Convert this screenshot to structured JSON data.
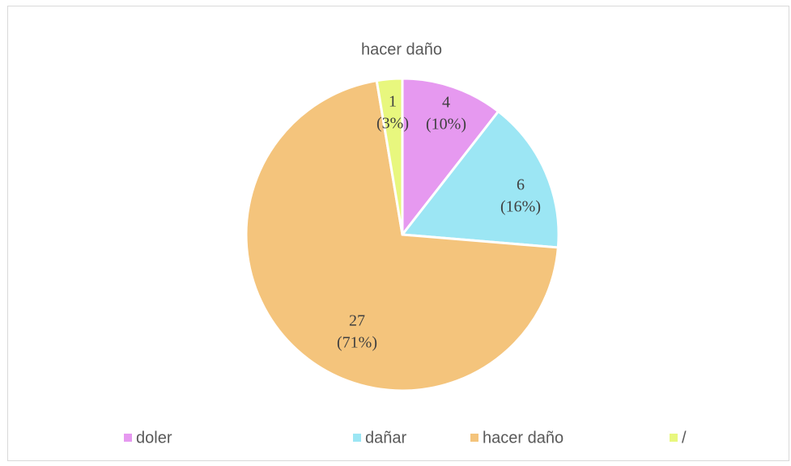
{
  "chart_data": {
    "type": "pie",
    "title": "hacer daño",
    "categories": [
      "doler",
      "dañar",
      "hacer daño",
      "/"
    ],
    "values": [
      4,
      6,
      27,
      1
    ],
    "percent_labels": [
      "(10%)",
      "(16%)",
      "(71%)",
      "(3%)"
    ],
    "colors": [
      "#e699f0",
      "#9ce6f4",
      "#f4c47c",
      "#e8f77e"
    ],
    "legend": "bottom"
  }
}
